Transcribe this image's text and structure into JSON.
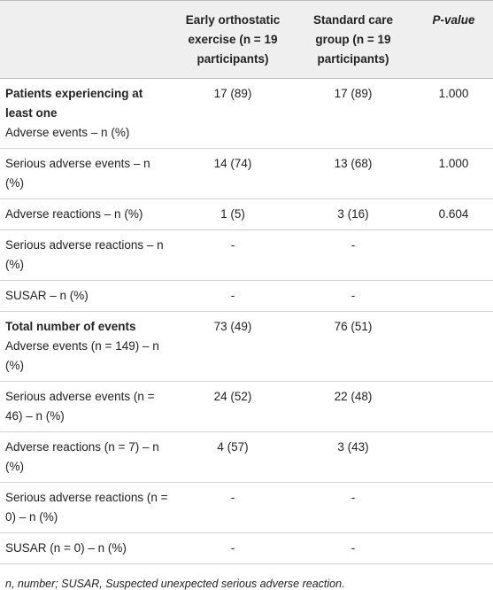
{
  "table": {
    "header": {
      "early": "Early orthostatic exercise (n = 19 participants)",
      "standard": "Standard care group (n = 19 participants)",
      "p": "P-value"
    },
    "rows": [
      {
        "heading": "Patients experiencing at least one",
        "label": "Adverse events – n (%)",
        "early": "17 (89)",
        "standard": "17 (89)",
        "p": "1.000"
      },
      {
        "label": "Serious adverse events – n (%)",
        "early": "14 (74)",
        "standard": "13 (68)",
        "p": "1.000"
      },
      {
        "label": "Adverse reactions – n (%)",
        "early": "1 (5)",
        "standard": "3 (16)",
        "p": "0.604"
      },
      {
        "label": "Serious adverse reactions – n (%)",
        "early": "-",
        "standard": "-"
      },
      {
        "label": "SUSAR – n (%)",
        "early": "-",
        "standard": "-"
      },
      {
        "heading": "Total number of events",
        "label": "Adverse events (n = 149) – n (%)",
        "early": "73 (49)",
        "standard": "76 (51)"
      },
      {
        "label": "Serious adverse events (n = 46) – n (%)",
        "early": "24 (52)",
        "standard": "22 (48)"
      },
      {
        "label": "Adverse reactions (n = 7) – n (%)",
        "early": "4 (57)",
        "standard": "3 (43)"
      },
      {
        "label": "Serious adverse reactions (n = 0) – n (%)",
        "early": "-",
        "standard": "-"
      },
      {
        "label": "SUSAR (n = 0) – n (%)",
        "early": "-",
        "standard": "-"
      }
    ],
    "footnote": "n, number; SUSAR, Suspected unexpected serious adverse reaction."
  }
}
